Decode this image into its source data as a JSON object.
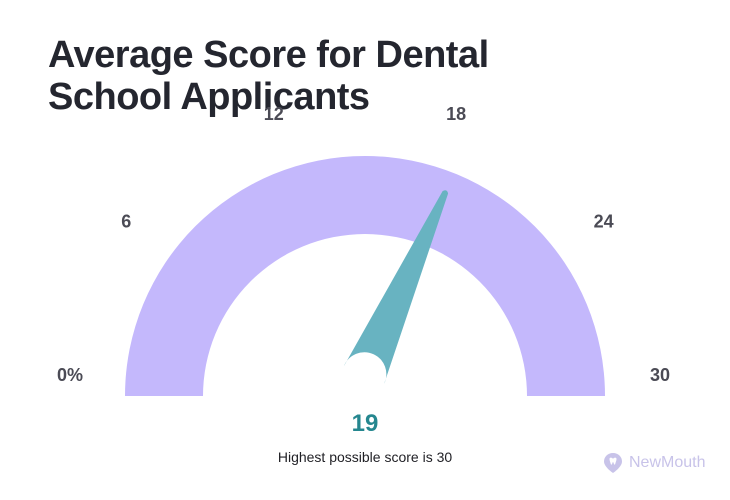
{
  "chart_data": {
    "type": "gauge",
    "title": "Average Score for Dental School Applicants",
    "value": 19,
    "value_label": "19",
    "min": 0,
    "max": 30,
    "ticks": [
      {
        "value": 0,
        "label": "0%"
      },
      {
        "value": 6,
        "label": "6"
      },
      {
        "value": 12,
        "label": "12"
      },
      {
        "value": 18,
        "label": "18"
      },
      {
        "value": 24,
        "label": "24"
      },
      {
        "value": 30,
        "label": "30"
      }
    ],
    "note": "Highest possible score is 30",
    "colors": {
      "arc": "#c4b8fc",
      "needle": "#68b3c1",
      "value_text": "#25878f",
      "title": "#24262f"
    }
  },
  "brand": {
    "name": "NewMouth",
    "icon": "tooth-pin-icon",
    "color": "#c8c3e9"
  }
}
